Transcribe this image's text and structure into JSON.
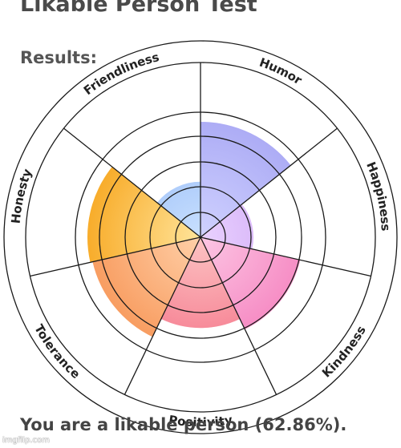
{
  "page": {
    "title": "Likable Person Test",
    "results_heading": "Results:",
    "result_text": "You are a likable person (62.86%).",
    "watermark": "imgflip.com"
  },
  "chart_data": {
    "type": "polar-area",
    "max": 5,
    "rings": 5,
    "categories": [
      "Humor",
      "Happiness",
      "Kindness",
      "Positivity",
      "Tolerance",
      "Honesty",
      "Friendliness"
    ],
    "values": [
      4.6,
      2.1,
      4.05,
      3.6,
      4.4,
      4.5,
      2.2
    ],
    "colors": [
      [
        "#d0d2ff",
        "#a9a8f4"
      ],
      [
        "#ead2ff",
        "#c79cf2"
      ],
      [
        "#fcc6e4",
        "#f57fbd"
      ],
      [
        "#fcc4c4",
        "#f57489"
      ],
      [
        "#ffd0a8",
        "#f79556"
      ],
      [
        "#ffe49a",
        "#f7a51c"
      ],
      [
        "#c9e0ff",
        "#8fb6f5"
      ]
    ]
  }
}
